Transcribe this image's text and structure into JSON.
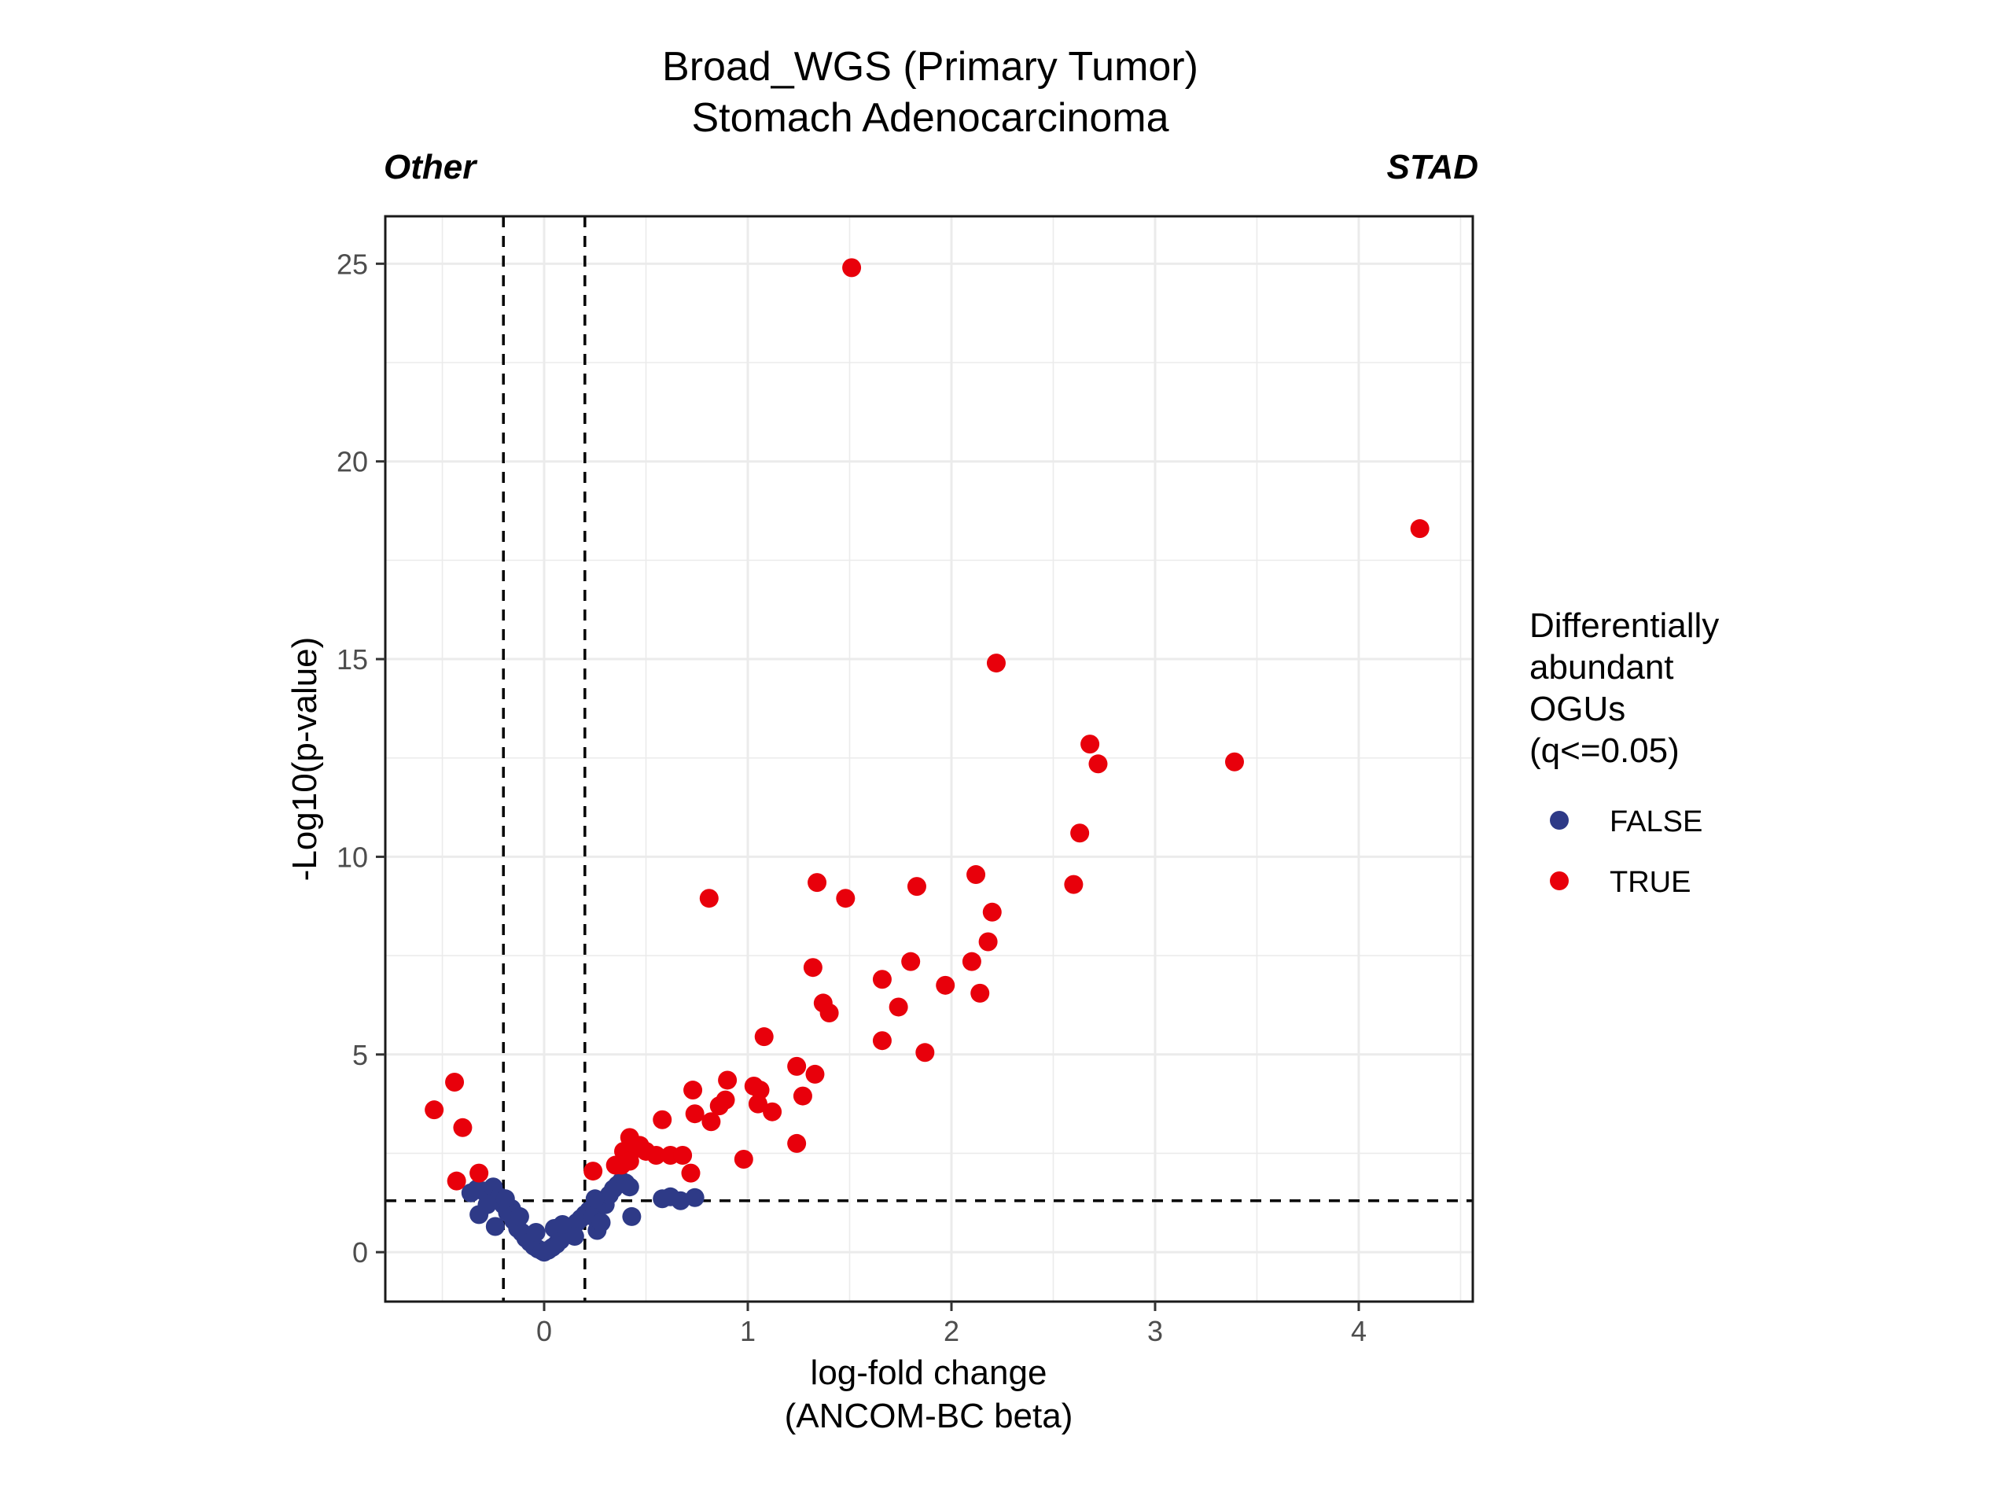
{
  "chart_data": {
    "type": "scatter",
    "title": "Broad_WGS (Primary Tumor)",
    "subtitle": "Stomach Adenocarcinoma",
    "left_annotation": "Other",
    "right_annotation": "STAD",
    "xlabel_line1": "log-fold change",
    "xlabel_line2": "(ANCOM-BC beta)",
    "ylabel": "-Log10(p-value)",
    "xlim": [
      -0.78,
      4.56
    ],
    "ylim": [
      -1.25,
      26.2
    ],
    "x_ticks": [
      0,
      1,
      2,
      3,
      4
    ],
    "y_ticks": [
      0,
      5,
      10,
      15,
      20,
      25
    ],
    "x_tick_labels": [
      "0",
      "1",
      "2",
      "3",
      "4"
    ],
    "y_tick_labels": [
      "0",
      "5",
      "10",
      "15",
      "20",
      "25"
    ],
    "grid": true,
    "thresholds": {
      "x": [
        -0.2,
        0.2
      ],
      "y": 1.3
    },
    "legend": {
      "title_lines": [
        "Differentially",
        "abundant",
        "OGUs",
        "(q<=0.05)"
      ],
      "position": "right",
      "items": [
        {
          "label": "FALSE",
          "color": "#2e3a87"
        },
        {
          "label": "TRUE",
          "color": "#e8000b"
        }
      ]
    },
    "series": [
      {
        "name": "FALSE",
        "color": "#2e3a87",
        "points": [
          [
            -0.36,
            1.5
          ],
          [
            -0.33,
            1.6
          ],
          [
            -0.3,
            1.55
          ],
          [
            -0.27,
            1.45
          ],
          [
            -0.25,
            1.65
          ],
          [
            -0.22,
            1.4
          ],
          [
            -0.2,
            1.2
          ],
          [
            -0.18,
            1.0
          ],
          [
            -0.16,
            1.1
          ],
          [
            -0.15,
            0.8
          ],
          [
            -0.13,
            0.6
          ],
          [
            -0.11,
            0.5
          ],
          [
            -0.09,
            0.35
          ],
          [
            -0.07,
            0.25
          ],
          [
            -0.05,
            0.15
          ],
          [
            -0.03,
            0.08
          ],
          [
            -0.01,
            0.03
          ],
          [
            0.0,
            0.0
          ],
          [
            0.02,
            0.05
          ],
          [
            0.04,
            0.12
          ],
          [
            0.06,
            0.2
          ],
          [
            0.08,
            0.3
          ],
          [
            0.1,
            0.45
          ],
          [
            0.12,
            0.55
          ],
          [
            0.14,
            0.65
          ],
          [
            0.16,
            0.75
          ],
          [
            0.18,
            0.85
          ],
          [
            0.2,
            0.95
          ],
          [
            0.22,
            1.05
          ],
          [
            0.24,
            0.9
          ],
          [
            0.26,
            0.55
          ],
          [
            0.28,
            0.75
          ],
          [
            0.3,
            1.2
          ],
          [
            0.32,
            1.45
          ],
          [
            0.34,
            1.6
          ],
          [
            0.36,
            1.7
          ],
          [
            0.38,
            1.8
          ],
          [
            0.4,
            1.75
          ],
          [
            0.42,
            1.65
          ],
          [
            0.43,
            0.9
          ],
          [
            -0.32,
            0.95
          ],
          [
            -0.24,
            0.65
          ],
          [
            -0.12,
            0.9
          ],
          [
            -0.04,
            0.5
          ],
          [
            0.05,
            0.6
          ],
          [
            0.15,
            0.4
          ],
          [
            0.25,
            1.35
          ],
          [
            0.58,
            1.35
          ],
          [
            0.67,
            1.3
          ],
          [
            0.74,
            1.38
          ],
          [
            0.62,
            1.4
          ],
          [
            -0.28,
            1.2
          ],
          [
            -0.19,
            1.35
          ],
          [
            0.09,
            0.7
          ]
        ]
      },
      {
        "name": "TRUE",
        "color": "#e8000b",
        "points": [
          [
            1.51,
            24.9
          ],
          [
            4.3,
            18.3
          ],
          [
            2.22,
            14.9
          ],
          [
            2.68,
            12.85
          ],
          [
            2.72,
            12.35
          ],
          [
            3.39,
            12.4
          ],
          [
            2.63,
            10.6
          ],
          [
            2.12,
            9.55
          ],
          [
            2.6,
            9.3
          ],
          [
            1.34,
            9.35
          ],
          [
            1.83,
            9.25
          ],
          [
            1.48,
            8.95
          ],
          [
            0.81,
            8.95
          ],
          [
            2.2,
            8.6
          ],
          [
            2.18,
            7.85
          ],
          [
            1.8,
            7.35
          ],
          [
            2.1,
            7.35
          ],
          [
            1.32,
            7.2
          ],
          [
            1.66,
            6.9
          ],
          [
            1.97,
            6.75
          ],
          [
            2.14,
            6.55
          ],
          [
            1.37,
            6.3
          ],
          [
            1.74,
            6.2
          ],
          [
            1.4,
            6.05
          ],
          [
            1.08,
            5.45
          ],
          [
            1.66,
            5.35
          ],
          [
            1.87,
            5.05
          ],
          [
            1.24,
            4.7
          ],
          [
            1.33,
            4.5
          ],
          [
            -0.44,
            4.3
          ],
          [
            0.9,
            4.35
          ],
          [
            1.03,
            4.2
          ],
          [
            0.73,
            4.1
          ],
          [
            1.06,
            4.1
          ],
          [
            1.27,
            3.95
          ],
          [
            0.89,
            3.85
          ],
          [
            0.86,
            3.7
          ],
          [
            1.05,
            3.75
          ],
          [
            -0.54,
            3.6
          ],
          [
            1.12,
            3.55
          ],
          [
            0.74,
            3.5
          ],
          [
            0.58,
            3.35
          ],
          [
            0.82,
            3.3
          ],
          [
            -0.4,
            3.15
          ],
          [
            0.42,
            2.9
          ],
          [
            0.47,
            2.7
          ],
          [
            0.44,
            2.6
          ],
          [
            0.39,
            2.55
          ],
          [
            0.5,
            2.55
          ],
          [
            0.55,
            2.45
          ],
          [
            0.62,
            2.45
          ],
          [
            0.68,
            2.45
          ],
          [
            0.38,
            2.2
          ],
          [
            0.35,
            2.2
          ],
          [
            0.42,
            2.3
          ],
          [
            0.98,
            2.35
          ],
          [
            1.24,
            2.75
          ],
          [
            0.72,
            2.0
          ],
          [
            0.24,
            2.05
          ],
          [
            -0.32,
            2.0
          ],
          [
            -0.43,
            1.8
          ]
        ]
      }
    ]
  }
}
